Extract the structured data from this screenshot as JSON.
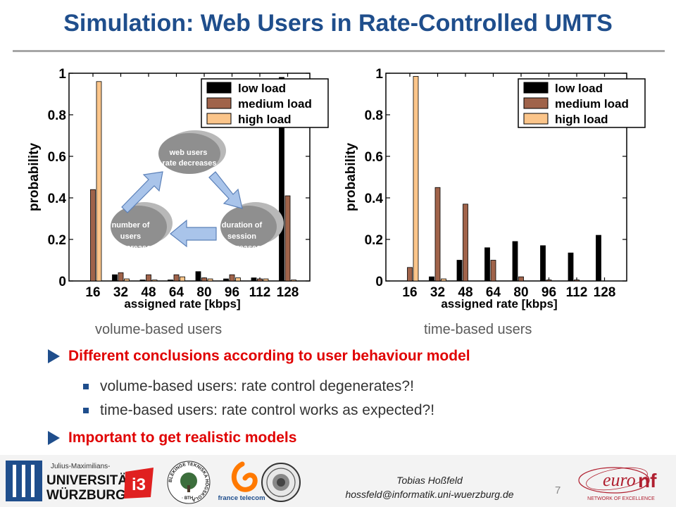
{
  "slide": {
    "title": "Simulation: Web Users in Rate-Controlled UMTS",
    "caption_left": "volume-based users",
    "caption_right": "time-based users",
    "bullet1": "Different conclusions according to user behaviour model",
    "sub1": "volume-based users: rate control degenerates?!",
    "sub2": "time-based users: rate control works as expected?!",
    "bullet2": "Important to get realistic models",
    "author": "Tobias Hoßfeld",
    "email": "hossfeld@informatik.uni-wuerzburg.de",
    "page_number": "7"
  },
  "cycle": {
    "top": [
      "web users",
      "rate decreases"
    ],
    "left": [
      "number of",
      "users",
      "increases"
    ],
    "right": [
      "duration of",
      "session",
      "increases"
    ]
  },
  "logos": {
    "uni_small": "Julius-Maximilians-",
    "uni_line1": "UNIVERSITÄT",
    "uni_line2": "WÜRZBURG",
    "i3": "i3",
    "bth_ring": "BLEKINGE TEKNISKA HÖGSKOLA",
    "bth_short": "· BTH ·",
    "ft": "france telecom",
    "euronf_main": "euro",
    "euronf_nf": "nf",
    "euronf_sub": "NETWORK OF EXCELLENCE"
  },
  "colors": {
    "title": "#1f4e8c",
    "emphasis": "#e00000",
    "low_load": "#000000",
    "medium_load": "#a0634a",
    "high_load": "#fbc58a"
  },
  "chart_data": [
    {
      "type": "bar",
      "categories": [
        "16",
        "32",
        "48",
        "64",
        "80",
        "96",
        "112",
        "128"
      ],
      "series": [
        {
          "name": "low load",
          "values": [
            0.0,
            0.03,
            0.005,
            0.005,
            0.045,
            0.01,
            0.015,
            0.98
          ]
        },
        {
          "name": "medium load",
          "values": [
            0.44,
            0.04,
            0.03,
            0.03,
            0.015,
            0.03,
            0.01,
            0.41
          ]
        },
        {
          "name": "high load",
          "values": [
            0.96,
            0.01,
            0.005,
            0.02,
            0.01,
            0.015,
            0.01,
            0.005
          ]
        }
      ],
      "xlabel": "assigned rate [kbps]",
      "ylabel": "probability",
      "ylim": [
        0,
        1
      ],
      "yticks": [
        "0",
        "0.2",
        "0.4",
        "0.6",
        "0.8",
        "1"
      ],
      "legend": "top-right",
      "grid": false
    },
    {
      "type": "bar",
      "categories": [
        "16",
        "32",
        "48",
        "64",
        "80",
        "96",
        "112",
        "128"
      ],
      "series": [
        {
          "name": "low load",
          "values": [
            0.0,
            0.02,
            0.1,
            0.16,
            0.19,
            0.17,
            0.135,
            0.22
          ]
        },
        {
          "name": "medium load",
          "values": [
            0.065,
            0.45,
            0.37,
            0.1,
            0.02,
            0.005,
            0.005,
            0.0
          ]
        },
        {
          "name": "high load",
          "values": [
            0.985,
            0.01,
            0.0,
            0.0,
            0.0,
            0.0,
            0.0,
            0.0
          ]
        }
      ],
      "xlabel": "assigned rate [kbps]",
      "ylabel": "probability",
      "ylim": [
        0,
        1
      ],
      "yticks": [
        "0",
        "0.2",
        "0.4",
        "0.6",
        "0.8",
        "1"
      ],
      "legend": "top-right",
      "grid": false
    }
  ]
}
